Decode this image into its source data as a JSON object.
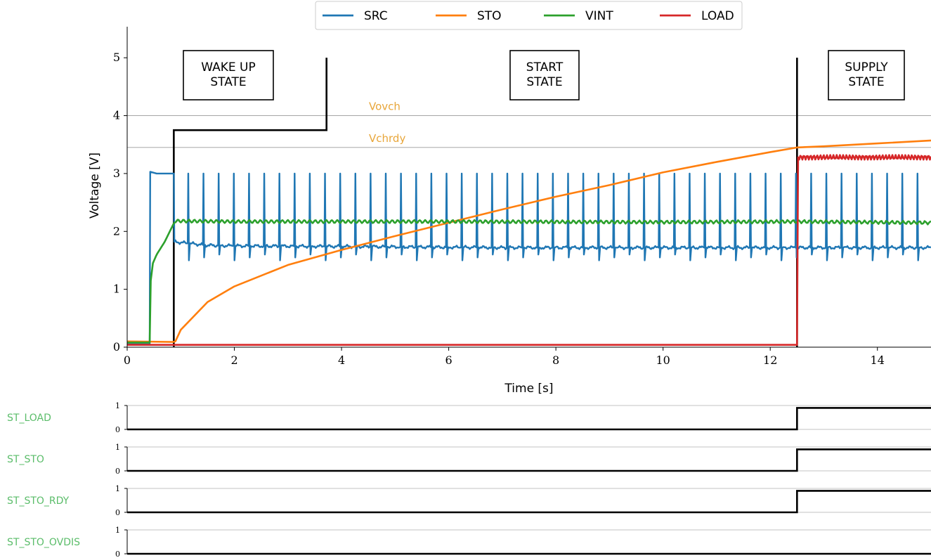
{
  "chart_data": [
    {
      "type": "line",
      "xlabel": "Time [s]",
      "ylabel": "Voltage [V]",
      "xlim": [
        0,
        15
      ],
      "ylim": [
        0,
        5.5
      ],
      "x_ticks": [
        "0",
        "2",
        "4",
        "6",
        "8",
        "10",
        "12",
        "14"
      ],
      "y_ticks": [
        "0",
        "1",
        "2",
        "3",
        "4",
        "5"
      ],
      "legend": {
        "placement": "top-center",
        "entries": [
          "SRC",
          "STO",
          "VINT",
          "LOAD"
        ]
      },
      "colors": {
        "SRC": "#1f77b4",
        "STO": "#ff7f0e",
        "VINT": "#2ca02c",
        "LOAD": "#d62728",
        "threshold_text": "#e8a63a"
      },
      "thresholds": [
        {
          "name": "Vovch",
          "y": 4.0
        },
        {
          "name": "Vchrdy",
          "y": 3.45
        }
      ],
      "states": [
        {
          "label_lines": [
            "WAKE UP",
            "STATE"
          ],
          "x_start": 0.0,
          "x_end": 0.87
        },
        {
          "label_lines": [
            "START",
            "STATE"
          ],
          "x_start": 0.87,
          "x_end": 12.5
        },
        {
          "label_lines": [
            "SUPPLY",
            "STATE"
          ],
          "x_start": 12.5,
          "x_end": 15.0
        }
      ],
      "state_trace": {
        "color": "#000000",
        "points": [
          [
            0.87,
            0
          ],
          [
            0.87,
            3.75
          ],
          [
            3.72,
            3.75
          ],
          [
            3.72,
            5.0
          ]
        ],
        "divider_x": 12.5,
        "divider_top": 5.0
      },
      "series": [
        {
          "name": "SRC",
          "baseline": [
            [
              0.0,
              0.05
            ],
            [
              0.42,
              0.05
            ],
            [
              0.43,
              3.03
            ],
            [
              0.55,
              3.0
            ],
            [
              0.87,
              3.0
            ],
            [
              0.88,
              1.82
            ],
            [
              1.5,
              1.76
            ],
            [
              2.0,
              1.75
            ],
            [
              4.0,
              1.74
            ],
            [
              7.0,
              1.72
            ],
            [
              10.0,
              1.72
            ],
            [
              12.5,
              1.72
            ],
            [
              15.0,
              1.72
            ]
          ],
          "spikes": {
            "x_start": 1.14,
            "spacing": 0.2835,
            "x_end": 15.0,
            "peak": 3.0,
            "dip": 1.5,
            "width": 0.045
          }
        },
        {
          "name": "STO",
          "points": [
            [
              0.0,
              0.1
            ],
            [
              0.85,
              0.09
            ],
            [
              0.9,
              0.1
            ],
            [
              1.0,
              0.3
            ],
            [
              1.5,
              0.78
            ],
            [
              2.0,
              1.05
            ],
            [
              3.0,
              1.42
            ],
            [
              4.0,
              1.68
            ],
            [
              5.0,
              1.92
            ],
            [
              6.0,
              2.15
            ],
            [
              7.0,
              2.38
            ],
            [
              8.0,
              2.6
            ],
            [
              9.0,
              2.8
            ],
            [
              10.0,
              3.02
            ],
            [
              11.0,
              3.2
            ],
            [
              12.0,
              3.37
            ],
            [
              12.5,
              3.45
            ],
            [
              13.0,
              3.47
            ],
            [
              14.0,
              3.52
            ],
            [
              15.0,
              3.57
            ]
          ]
        },
        {
          "name": "VINT",
          "points": [
            [
              0.0,
              0.08
            ],
            [
              0.42,
              0.08
            ],
            [
              0.44,
              1.15
            ],
            [
              0.48,
              1.45
            ],
            [
              0.55,
              1.6
            ],
            [
              0.7,
              1.82
            ],
            [
              0.87,
              2.14
            ],
            [
              0.9,
              2.18
            ],
            [
              2.0,
              2.17
            ],
            [
              6.0,
              2.17
            ],
            [
              10.0,
              2.16
            ],
            [
              12.5,
              2.17
            ],
            [
              15.0,
              2.15
            ]
          ]
        },
        {
          "name": "LOAD",
          "points": [
            [
              0.0,
              0.04
            ],
            [
              12.48,
              0.04
            ],
            [
              12.5,
              0.04
            ],
            [
              12.52,
              3.28
            ],
            [
              15.0,
              3.28
            ]
          ]
        }
      ]
    },
    {
      "type": "line",
      "panels": [
        {
          "label": "ST_LOAD",
          "y_ticks": [
            "1",
            "0"
          ],
          "points": [
            [
              0,
              0
            ],
            [
              12.5,
              0
            ],
            [
              12.5,
              0.9
            ],
            [
              15,
              0.9
            ]
          ]
        },
        {
          "label": "ST_STO",
          "y_ticks": [
            "1",
            "0"
          ],
          "points": [
            [
              0,
              0
            ],
            [
              12.5,
              0
            ],
            [
              12.5,
              0.9
            ],
            [
              15,
              0.9
            ]
          ]
        },
        {
          "label": "ST_STO_RDY",
          "y_ticks": [
            "1",
            "0"
          ],
          "points": [
            [
              0,
              0
            ],
            [
              12.5,
              0
            ],
            [
              12.5,
              0.9
            ],
            [
              15,
              0.9
            ]
          ]
        },
        {
          "label": "ST_STO_OVDIS",
          "y_ticks": [
            "1",
            "0"
          ],
          "points": [
            [
              0,
              0
            ],
            [
              15,
              0
            ]
          ]
        }
      ],
      "xlim": [
        0,
        15
      ],
      "ylim": [
        0,
        1
      ],
      "label_color": "#5bbd6a"
    }
  ]
}
